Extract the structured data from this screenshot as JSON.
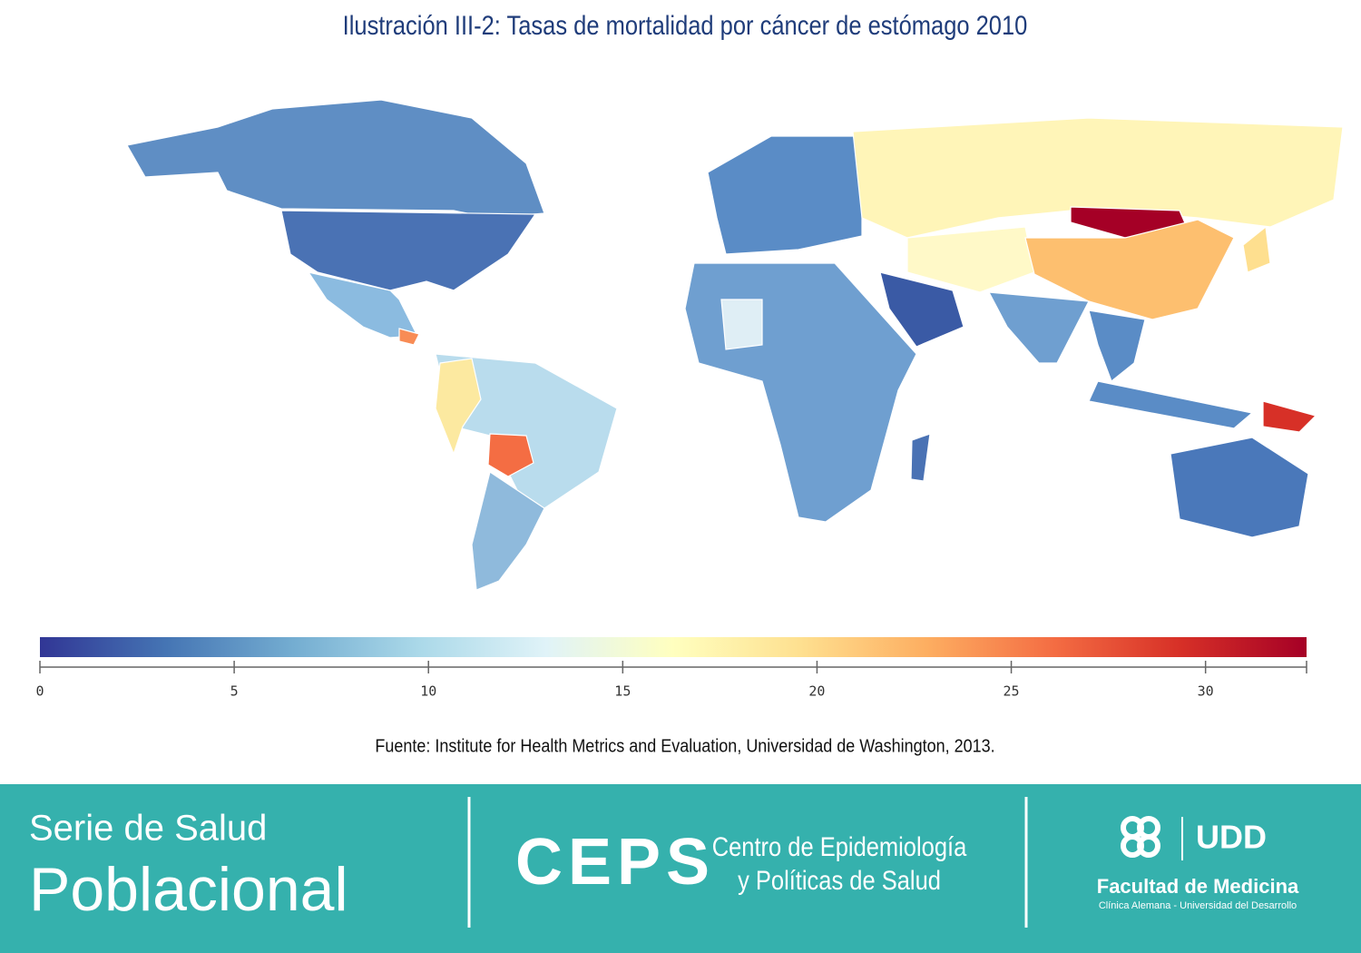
{
  "chart_data": {
    "type": "choropleth",
    "title": "Ilustración III-2: Tasas de mortalidad por cáncer de estómago 2010",
    "colorscale": [
      "#313695",
      "#4575b4",
      "#74add1",
      "#abd9e9",
      "#e0f3f8",
      "#ffffbf",
      "#fee090",
      "#fdae61",
      "#f46d43",
      "#d73027",
      "#a50026"
    ],
    "xlim": [
      0,
      32.6
    ],
    "xticks": [
      0,
      5,
      10,
      15,
      20,
      25,
      30
    ],
    "source": "Fuente: Institute for Health Metrics and Evaluation, Universidad de Washington, 2013."
  },
  "footer": {
    "series_line1": "Serie de Salud",
    "series_line2": "Poblacional",
    "ceps": "CEPS",
    "ceps_line1": "Centro de Epidemiología",
    "ceps_line2": "y Políticas de Salud",
    "udd": "UDD",
    "faculty": "Facultad de Medicina",
    "faculty_sub": "Clínica Alemana - Universidad del Desarrollo"
  }
}
